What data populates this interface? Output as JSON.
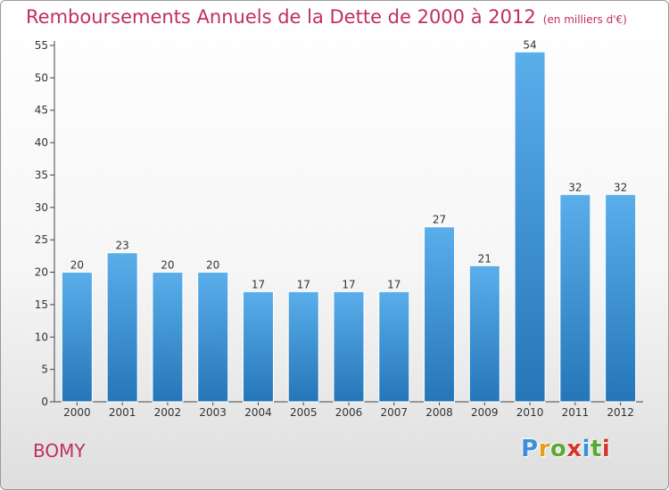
{
  "title": "Remboursements Annuels de la Dette de 2000 à 2012",
  "title_unit": "(en milliers d'€)",
  "commune": "BOMY",
  "logo_text": "Proxiti",
  "colors": {
    "title": "#c0305a",
    "bar_top": "#5aaeea",
    "bar_bottom": "#2576b8",
    "logo_letters": [
      "#3a8fd8",
      "#e2a020",
      "#5aa83a",
      "#d8342c",
      "#3a8fd8",
      "#5aa83a",
      "#d8342c"
    ]
  },
  "chart_data": {
    "type": "bar",
    "title": "Remboursements Annuels de la Dette de 2000 à 2012",
    "xlabel": "",
    "ylabel": "",
    "categories": [
      "2000",
      "2001",
      "2002",
      "2003",
      "2004",
      "2005",
      "2006",
      "2007",
      "2008",
      "2009",
      "2010",
      "2011",
      "2012"
    ],
    "values": [
      20,
      23,
      20,
      20,
      17,
      17,
      17,
      17,
      27,
      21,
      54,
      32,
      32
    ],
    "ylim": [
      0,
      55
    ],
    "yticks": [
      0,
      5,
      10,
      15,
      20,
      25,
      30,
      35,
      40,
      45,
      50,
      55
    ],
    "grid": false,
    "data_labels": true
  }
}
